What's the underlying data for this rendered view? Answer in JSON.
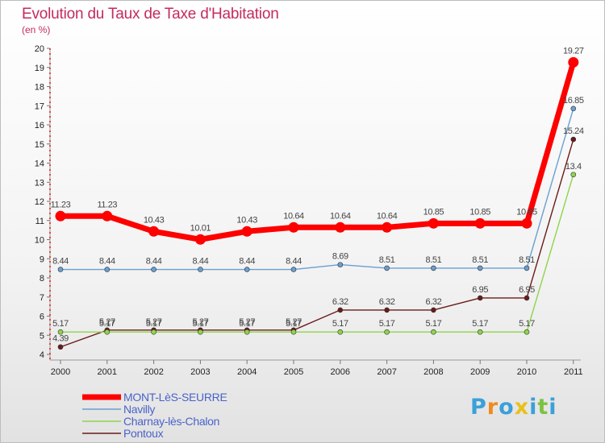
{
  "chart_data": {
    "type": "line",
    "title": "Evolution du Taux de Taxe d'Habitation",
    "subtitle": "(en %)",
    "ylim": [
      4,
      20
    ],
    "yticks": [
      4,
      5,
      6,
      7,
      8,
      9,
      10,
      11,
      12,
      13,
      14,
      15,
      16,
      17,
      18,
      19,
      20
    ],
    "x": [
      "2000",
      "2001",
      "2002",
      "2003",
      "2004",
      "2005",
      "2006",
      "2007",
      "2008",
      "2009",
      "2010",
      "2011"
    ],
    "series": [
      {
        "name": "Pontoux",
        "color": "#6b1a1a",
        "values": [
          4.39,
          5.27,
          5.27,
          5.27,
          5.27,
          5.27,
          6.32,
          6.32,
          6.32,
          6.95,
          6.95,
          15.24
        ],
        "labels": [
          "4.39",
          "5.27",
          "5.27",
          "5.27",
          "5.27",
          "5.27",
          "6.32",
          "6.32",
          "6.32",
          "6.95",
          "6.95",
          "15.24"
        ]
      },
      {
        "name": "Charnay-lès-Chalon",
        "color": "#8fd44a",
        "values": [
          5.17,
          5.17,
          5.17,
          5.17,
          5.17,
          5.17,
          5.17,
          5.17,
          5.17,
          5.17,
          5.17,
          13.4
        ],
        "labels": [
          "5.17",
          "5.17",
          "5.17",
          "5.17",
          "5.17",
          "5.17",
          "5.17",
          "5.17",
          "5.17",
          "5.17",
          "5.17",
          "13.4"
        ]
      },
      {
        "name": "Navilly",
        "color": "#6a9fd0",
        "values": [
          8.44,
          8.44,
          8.44,
          8.44,
          8.44,
          8.44,
          8.69,
          8.51,
          8.51,
          8.51,
          8.51,
          16.85
        ],
        "labels": [
          "8.44",
          "8.44",
          "8.44",
          "8.44",
          "8.44",
          "8.44",
          "8.69",
          "8.51",
          "8.51",
          "8.51",
          "8.51",
          "16.85"
        ]
      },
      {
        "name": "MONT-LèS-SEURRE",
        "color": "#ff0000",
        "values": [
          11.23,
          11.23,
          10.43,
          10.01,
          10.43,
          10.64,
          10.64,
          10.64,
          10.85,
          10.85,
          10.85,
          19.27
        ],
        "labels": [
          "11.23",
          "11.23",
          "10.43",
          "10.01",
          "10.43",
          "10.64",
          "10.64",
          "10.64",
          "10.85",
          "10.85",
          "10.85",
          "19.27"
        ]
      }
    ],
    "legend": [
      "MONT-LèS-SEURRE",
      "Navilly",
      "Charnay-lès-Chalon",
      "Pontoux"
    ],
    "legend_position": "bottom-left",
    "grid": false
  },
  "logo": {
    "letters": [
      "P",
      "r",
      "o",
      "x",
      "i",
      "t",
      "i"
    ],
    "colors": [
      "#3aa0d8",
      "#f08a1c",
      "#3aa0d8",
      "#e8c21a",
      "#3aa0d8",
      "#7cc242",
      "#3aa0d8"
    ]
  }
}
